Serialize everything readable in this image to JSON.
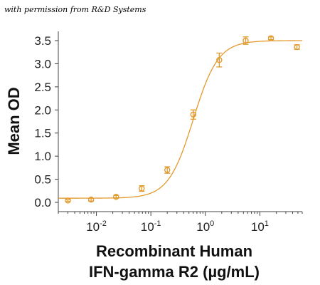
{
  "caption": "with permission from R&D Systems",
  "chart_data": {
    "type": "scatter",
    "xscale": "log",
    "xlim": [
      0.002,
      60
    ],
    "ylim": [
      -0.2,
      3.7
    ],
    "ylabel": "Mean OD",
    "xlabel_lines": [
      "Recombinant Human",
      "IFN-gamma R2 (µg/mL)"
    ],
    "x_ticks": [
      {
        "value": 0.01,
        "base": "10",
        "exp": "-2"
      },
      {
        "value": 0.1,
        "base": "10",
        "exp": "-1"
      },
      {
        "value": 1,
        "base": "10",
        "exp": "0"
      },
      {
        "value": 10,
        "base": "10",
        "exp": "1"
      }
    ],
    "y_ticks": [
      "0.0",
      "0.5",
      "1.0",
      "1.5",
      "2.0",
      "2.5",
      "3.0",
      "3.5"
    ],
    "color": "#e39a2d",
    "series": [
      {
        "points": [
          {
            "x": 0.003,
            "y": 0.04,
            "err": 0.02
          },
          {
            "x": 0.008,
            "y": 0.06,
            "err": 0.03
          },
          {
            "x": 0.023,
            "y": 0.12,
            "err": 0.03
          },
          {
            "x": 0.068,
            "y": 0.3,
            "err": 0.06
          },
          {
            "x": 0.2,
            "y": 0.7,
            "err": 0.07
          },
          {
            "x": 0.6,
            "y": 1.9,
            "err": 0.1
          },
          {
            "x": 1.8,
            "y": 3.08,
            "err": 0.15
          },
          {
            "x": 5.5,
            "y": 3.5,
            "err": 0.08
          },
          {
            "x": 16,
            "y": 3.55,
            "err": 0.03
          },
          {
            "x": 48,
            "y": 3.36,
            "err": 0.05
          }
        ],
        "fit": {
          "bottom": 0.09,
          "top": 3.5,
          "ec50": 0.6,
          "hill": 1.9
        }
      }
    ]
  }
}
